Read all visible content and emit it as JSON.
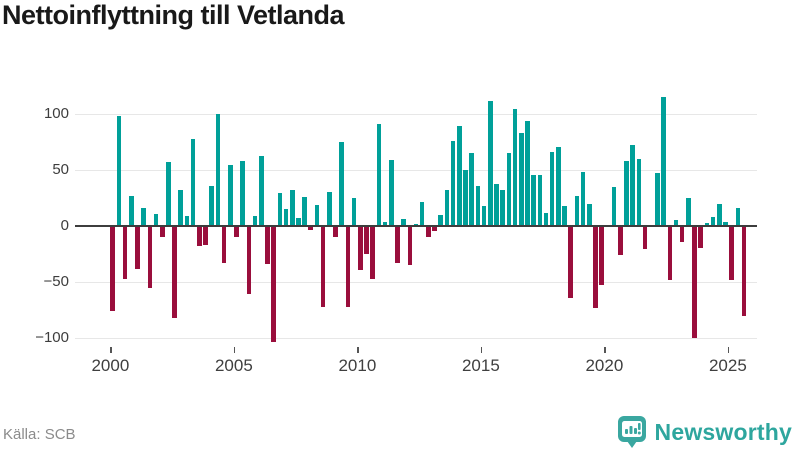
{
  "header": {
    "title": "Nettoinflyttning till Vetlanda"
  },
  "footer": {
    "source_label": "Källa: SCB",
    "brand": {
      "name": "Newsworthy",
      "icon": "newsworthy-pin-chart-icon"
    }
  },
  "colors": {
    "positive_bar": "#00a099",
    "negative_bar": "#9a0e3c",
    "gridline": "#e7e7e7",
    "zero_axis": "#3d3d3d",
    "tick_label": "#3f3f3f",
    "title_text": "#191919",
    "source_text": "#8b8b8b",
    "brand_teal": "#2ea69e"
  },
  "chart_data": {
    "type": "bar",
    "title": "Nettoinflyttning till Vetlanda",
    "frequency": "quarterly",
    "legend": "none",
    "grid": "horizontal",
    "ylim": [
      -115,
      125
    ],
    "y_ticks": [
      {
        "label": "100",
        "value": 100
      },
      {
        "label": "50",
        "value": 50
      },
      {
        "label": "0",
        "value": 0
      },
      {
        "label": "−50",
        "value": -50
      },
      {
        "label": "−100",
        "value": -100
      }
    ],
    "x_ticks": [
      {
        "label": "2000",
        "year": 2000
      },
      {
        "label": "2005",
        "year": 2005
      },
      {
        "label": "2010",
        "year": 2010
      },
      {
        "label": "2015",
        "year": 2015
      },
      {
        "label": "2020",
        "year": 2020
      },
      {
        "label": "2025",
        "year": 2025
      }
    ],
    "categories": [
      "2000 Q1",
      "2000 Q2",
      "2000 Q3",
      "2000 Q4",
      "2001 Q1",
      "2001 Q2",
      "2001 Q3",
      "2001 Q4",
      "2002 Q1",
      "2002 Q2",
      "2002 Q3",
      "2002 Q4",
      "2003 Q1",
      "2003 Q2",
      "2003 Q3",
      "2003 Q4",
      "2004 Q1",
      "2004 Q2",
      "2004 Q3",
      "2004 Q4",
      "2005 Q1",
      "2005 Q2",
      "2005 Q3",
      "2005 Q4",
      "2006 Q1",
      "2006 Q2",
      "2006 Q3",
      "2006 Q4",
      "2007 Q1",
      "2007 Q2",
      "2007 Q3",
      "2007 Q4",
      "2008 Q1",
      "2008 Q2",
      "2008 Q3",
      "2008 Q4",
      "2009 Q1",
      "2009 Q2",
      "2009 Q3",
      "2009 Q4",
      "2010 Q1",
      "2010 Q2",
      "2010 Q3",
      "2010 Q4",
      "2011 Q1",
      "2011 Q2",
      "2011 Q3",
      "2011 Q4",
      "2012 Q1",
      "2012 Q2",
      "2012 Q3",
      "2012 Q4",
      "2013 Q1",
      "2013 Q2",
      "2013 Q3",
      "2013 Q4",
      "2014 Q1",
      "2014 Q2",
      "2014 Q3",
      "2014 Q4",
      "2015 Q1",
      "2015 Q2",
      "2015 Q3",
      "2015 Q4",
      "2016 Q1",
      "2016 Q2",
      "2016 Q3",
      "2016 Q4",
      "2017 Q1",
      "2017 Q2",
      "2017 Q3",
      "2017 Q4",
      "2018 Q1",
      "2018 Q2",
      "2018 Q3",
      "2018 Q4",
      "2019 Q1",
      "2019 Q2",
      "2019 Q3",
      "2019 Q4",
      "2020 Q1",
      "2020 Q2",
      "2020 Q3",
      "2020 Q4",
      "2021 Q1",
      "2021 Q2",
      "2021 Q3",
      "2021 Q4",
      "2022 Q1",
      "2022 Q2",
      "2022 Q3",
      "2022 Q4",
      "2023 Q1",
      "2023 Q2",
      "2023 Q3",
      "2023 Q4",
      "2024 Q1",
      "2024 Q2",
      "2024 Q3",
      "2024 Q4",
      "2025 Q1",
      "2025 Q2",
      "2025 Q3"
    ],
    "values": [
      -75,
      98,
      -46,
      27,
      -37,
      16,
      -54,
      11,
      -9,
      57,
      -81,
      32,
      9,
      77,
      -17,
      -16,
      36,
      100,
      -32,
      54,
      -9,
      58,
      -60,
      9,
      62,
      -33,
      -102,
      29,
      15,
      32,
      7,
      26,
      -3,
      19,
      -71,
      30,
      -9,
      75,
      -71,
      25,
      -38,
      -24,
      -46,
      91,
      4,
      59,
      -32,
      6,
      -34,
      2,
      21,
      -9,
      -4,
      10,
      32,
      76,
      89,
      50,
      65,
      36,
      18,
      111,
      37,
      32,
      65,
      104,
      83,
      93,
      45,
      45,
      12,
      66,
      70,
      18,
      -63,
      27,
      48,
      20,
      -72,
      -52,
      0,
      35,
      -25,
      58,
      72,
      60,
      -20,
      0,
      47,
      115,
      -47,
      5,
      -13,
      25,
      -99,
      -19,
      3,
      8,
      20,
      4,
      -47,
      16,
      -79
    ]
  }
}
